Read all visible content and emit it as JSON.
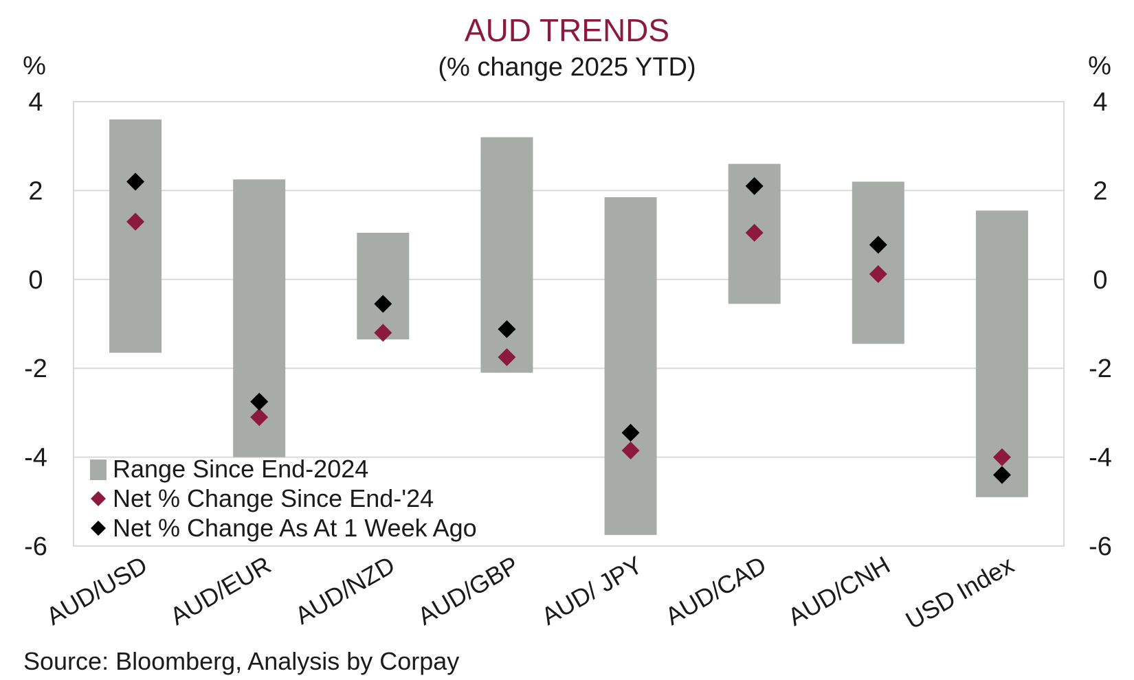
{
  "chart_data": {
    "type": "range_dot",
    "title": "AUD TRENDS",
    "subtitle": "(% change 2025 YTD)",
    "y_left_unit": "%",
    "y_right_unit": "%",
    "ylim": [
      -6,
      4
    ],
    "yticks": [
      4,
      2,
      0,
      -2,
      -4,
      -6
    ],
    "categories": [
      "AUD/USD",
      "AUD/EUR",
      "AUD/NZD",
      "AUD/GBP",
      "AUD/ JPY",
      "AUD/CAD",
      "AUD/CNH",
      "USD Index"
    ],
    "series": [
      {
        "name": "Range Since End-2024",
        "kind": "range",
        "color": "#a8aca9",
        "low": [
          -1.65,
          -4.0,
          -1.35,
          -2.1,
          -5.75,
          -0.55,
          -1.45,
          -4.9
        ],
        "high": [
          3.6,
          2.25,
          1.05,
          3.2,
          1.85,
          2.6,
          2.2,
          1.55
        ]
      },
      {
        "name": "Net % Change Since End-'24",
        "kind": "marker",
        "color": "#8b1a3d",
        "values": [
          1.3,
          -3.1,
          -1.2,
          -1.75,
          -3.85,
          1.05,
          0.12,
          -4.0
        ]
      },
      {
        "name": "Net % Change As At 1 Week Ago",
        "kind": "marker",
        "color": "#000000",
        "values": [
          2.2,
          -2.75,
          -0.55,
          -1.12,
          -3.45,
          2.1,
          0.78,
          -4.4
        ]
      }
    ],
    "grid": true,
    "legend_position": "bottom-left"
  },
  "source": "Source: Bloomberg, Analysis by Corpay"
}
